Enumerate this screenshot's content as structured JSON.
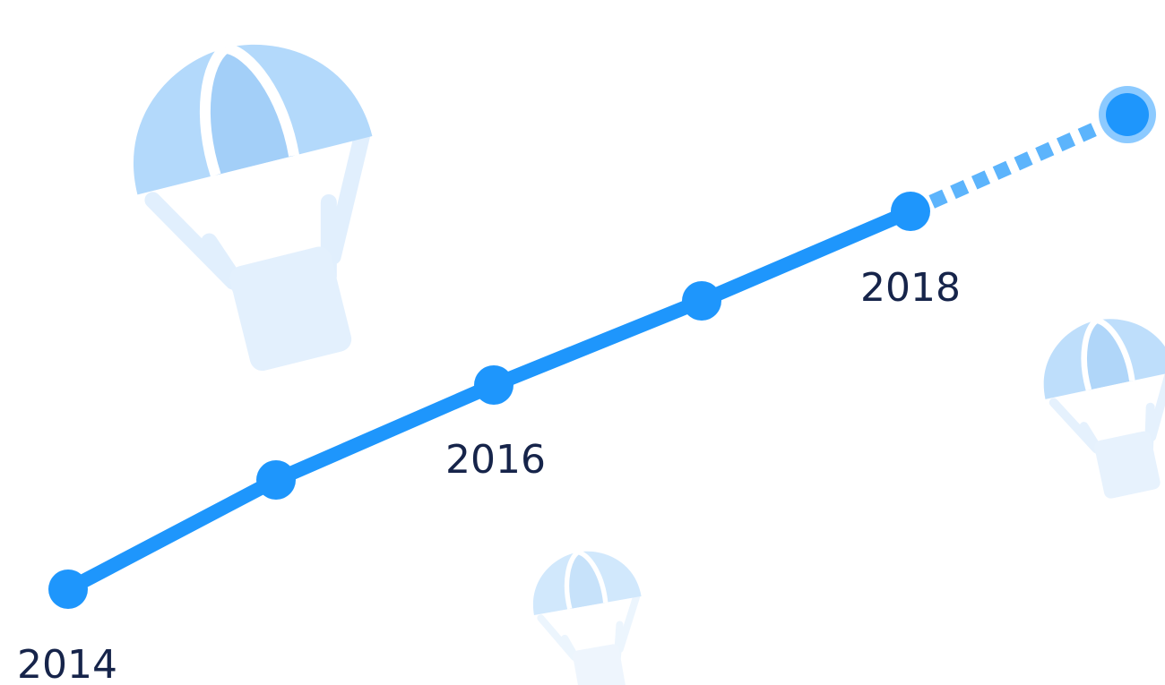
{
  "timeline": {
    "labels": [
      "2014",
      "2016",
      "2018"
    ]
  }
}
